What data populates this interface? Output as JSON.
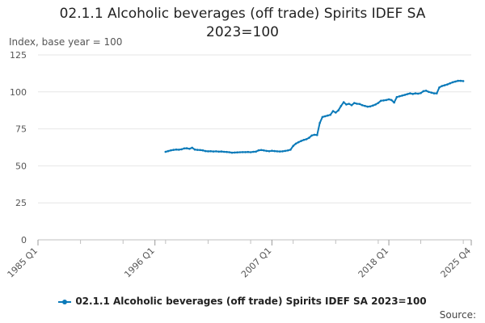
{
  "chart_data": {
    "type": "line",
    "title_lines": [
      "02.1.1 Alcoholic beverages (off trade) Spirits IDEF SA",
      "2023=100"
    ],
    "ylabel": "Index, base year = 100",
    "xlabel": "",
    "x_ticks": [
      "1985 Q1",
      "1996 Q1",
      "2007 Q1",
      "2018 Q1",
      "2025 Q4"
    ],
    "x_start": "1985 Q1",
    "x_end": "2025 Q4",
    "y_ticks": [
      0,
      25,
      50,
      75,
      100,
      125
    ],
    "ylim": [
      0,
      125
    ],
    "grid": true,
    "legend_position": "bottom",
    "series": [
      {
        "name": "02.1.1 Alcoholic beverages (off trade) Spirits IDEF SA 2023=100",
        "color": "#0b7ab9",
        "x_start": "1997 Q1",
        "frequency": "quarterly",
        "values": [
          59.5,
          60.0,
          60.5,
          60.8,
          61.0,
          60.9,
          61.2,
          61.8,
          61.9,
          61.5,
          62.3,
          61.0,
          60.8,
          60.7,
          60.5,
          60.0,
          59.8,
          59.9,
          59.7,
          59.8,
          59.6,
          59.7,
          59.5,
          59.4,
          59.2,
          58.9,
          59.0,
          59.1,
          59.2,
          59.3,
          59.3,
          59.4,
          59.2,
          59.5,
          59.6,
          60.5,
          60.7,
          60.4,
          60.1,
          59.9,
          60.2,
          60.0,
          59.8,
          59.7,
          59.8,
          60.1,
          60.4,
          60.9,
          63.5,
          65.0,
          66.0,
          66.8,
          67.5,
          68.0,
          69.0,
          70.5,
          71.0,
          70.8,
          79.0,
          83.0,
          83.5,
          84.0,
          84.5,
          87.0,
          86.0,
          87.5,
          90.5,
          93.0,
          91.5,
          92.0,
          91.0,
          92.5,
          92.0,
          91.8,
          91.0,
          90.5,
          90.0,
          90.2,
          90.8,
          91.5,
          92.5,
          94.0,
          94.2,
          94.5,
          95.0,
          94.5,
          92.8,
          96.5,
          97.0,
          97.5,
          98.0,
          98.5,
          99.0,
          98.6,
          99.0,
          98.8,
          99.2,
          100.5,
          100.8,
          100.0,
          99.5,
          99.0,
          99.0,
          103.0,
          104.0,
          104.5,
          105.0,
          105.8,
          106.5,
          107.0,
          107.5,
          107.5,
          107.3
        ]
      }
    ]
  },
  "footer": {
    "source_label": "Source:"
  }
}
